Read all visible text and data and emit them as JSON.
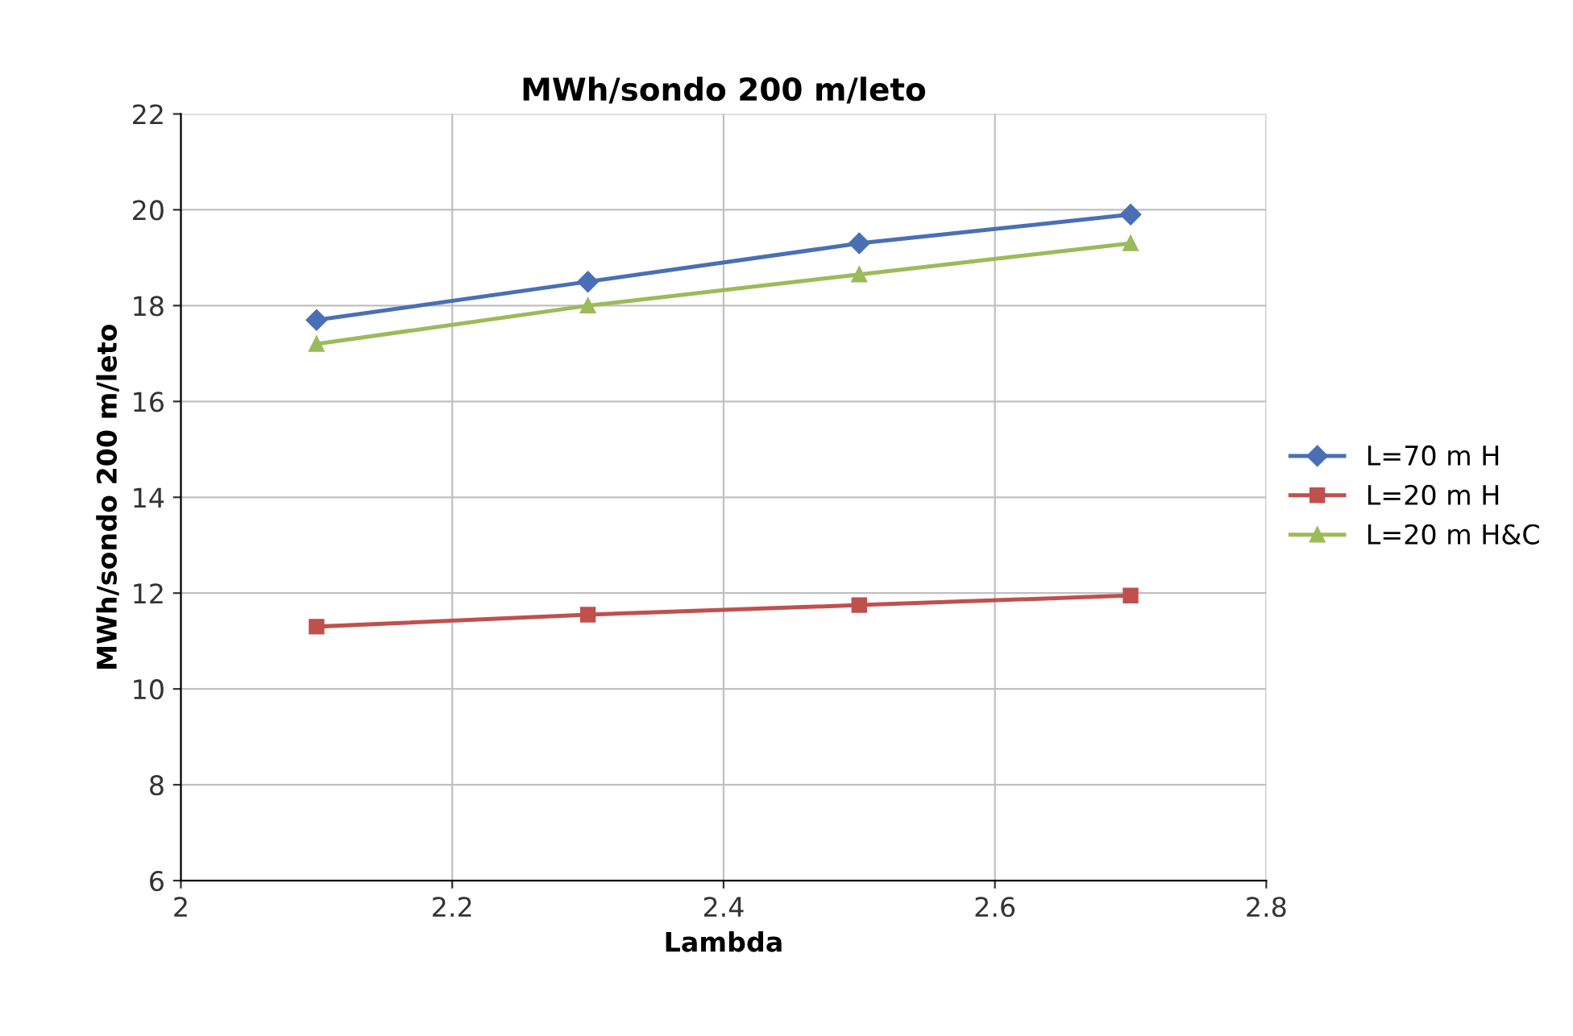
{
  "chart_data": {
    "type": "line",
    "title": "MWh/sondo 200 m/leto",
    "xlabel": "Lambda",
    "ylabel": "MWh/sondo 200 m/leto",
    "x": [
      2.1,
      2.3,
      2.5,
      2.7
    ],
    "series": [
      {
        "name": "L=70 m H",
        "color": "#4a6fb5",
        "marker": "diamond",
        "values": [
          17.7,
          18.5,
          19.3,
          19.9
        ]
      },
      {
        "name": "L=20 m H",
        "color": "#c0504d",
        "marker": "square",
        "values": [
          11.3,
          11.55,
          11.75,
          11.95
        ]
      },
      {
        "name": "L=20 m H&C",
        "color": "#9bbb59",
        "marker": "triangle",
        "values": [
          17.2,
          18.0,
          18.65,
          19.3
        ]
      }
    ],
    "xlim": [
      2,
      2.8
    ],
    "xticks": [
      2,
      2.2,
      2.4,
      2.6,
      2.8
    ],
    "ylim": [
      6,
      22
    ],
    "yticks": [
      6,
      8,
      10,
      12,
      14,
      16,
      18,
      20,
      22
    ],
    "grid": true,
    "legend": "right",
    "line_style": "solid"
  }
}
